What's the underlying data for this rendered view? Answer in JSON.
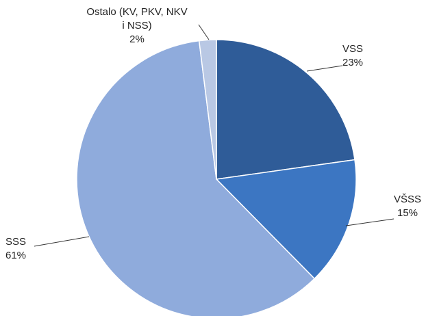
{
  "chart_data": {
    "type": "pie",
    "categories": [
      "VSS",
      "VŠSS",
      "SSS",
      "Ostalo (KV, PKV, NKV i NSS)"
    ],
    "values": [
      23,
      15,
      61,
      2
    ],
    "value_labels": [
      "23%",
      "15%",
      "61%",
      "2%"
    ],
    "colors": [
      "#2f5c98",
      "#3c76c2",
      "#8fabdc",
      "#b9c8e4"
    ]
  }
}
